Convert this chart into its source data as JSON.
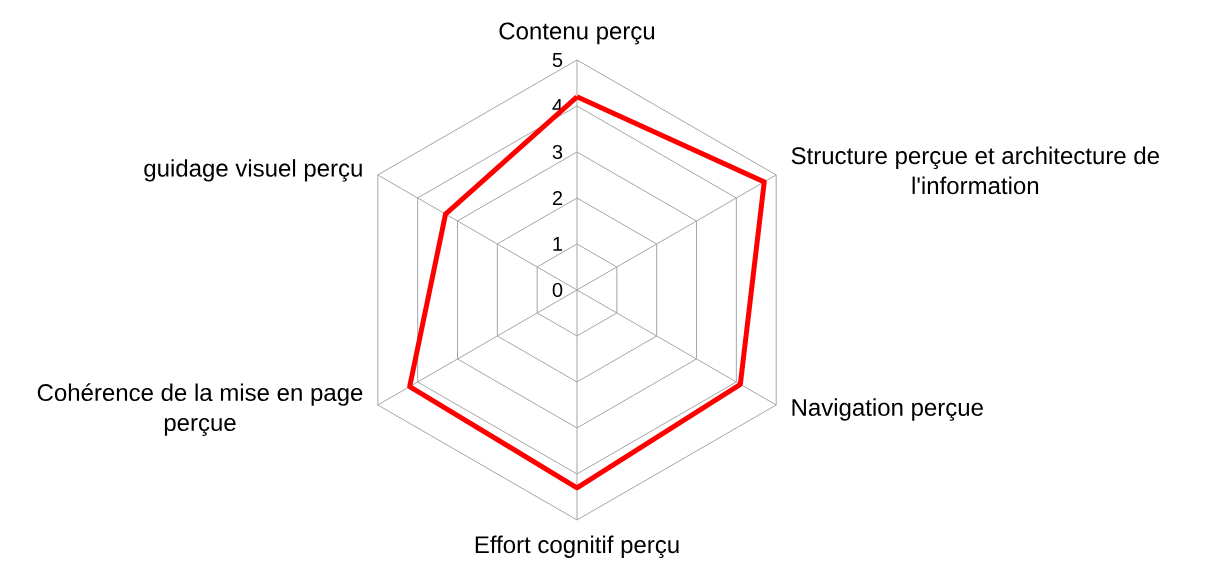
{
  "chart_data": {
    "type": "radar",
    "categories": [
      "Contenu perçu",
      "Structure perçue et architecture de l'information",
      "Navigation perçue",
      "Effort cognitif perçu",
      "Cohérence de la mise en page perçue",
      "guidage visuel perçu"
    ],
    "series": [
      {
        "color": "#ff0000",
        "values": [
          4.2,
          4.7,
          4.1,
          4.3,
          4.2,
          3.3
        ]
      }
    ],
    "ylim": [
      0,
      5
    ],
    "yticks": [
      0,
      1,
      2,
      3,
      4,
      5
    ],
    "grid": true
  }
}
